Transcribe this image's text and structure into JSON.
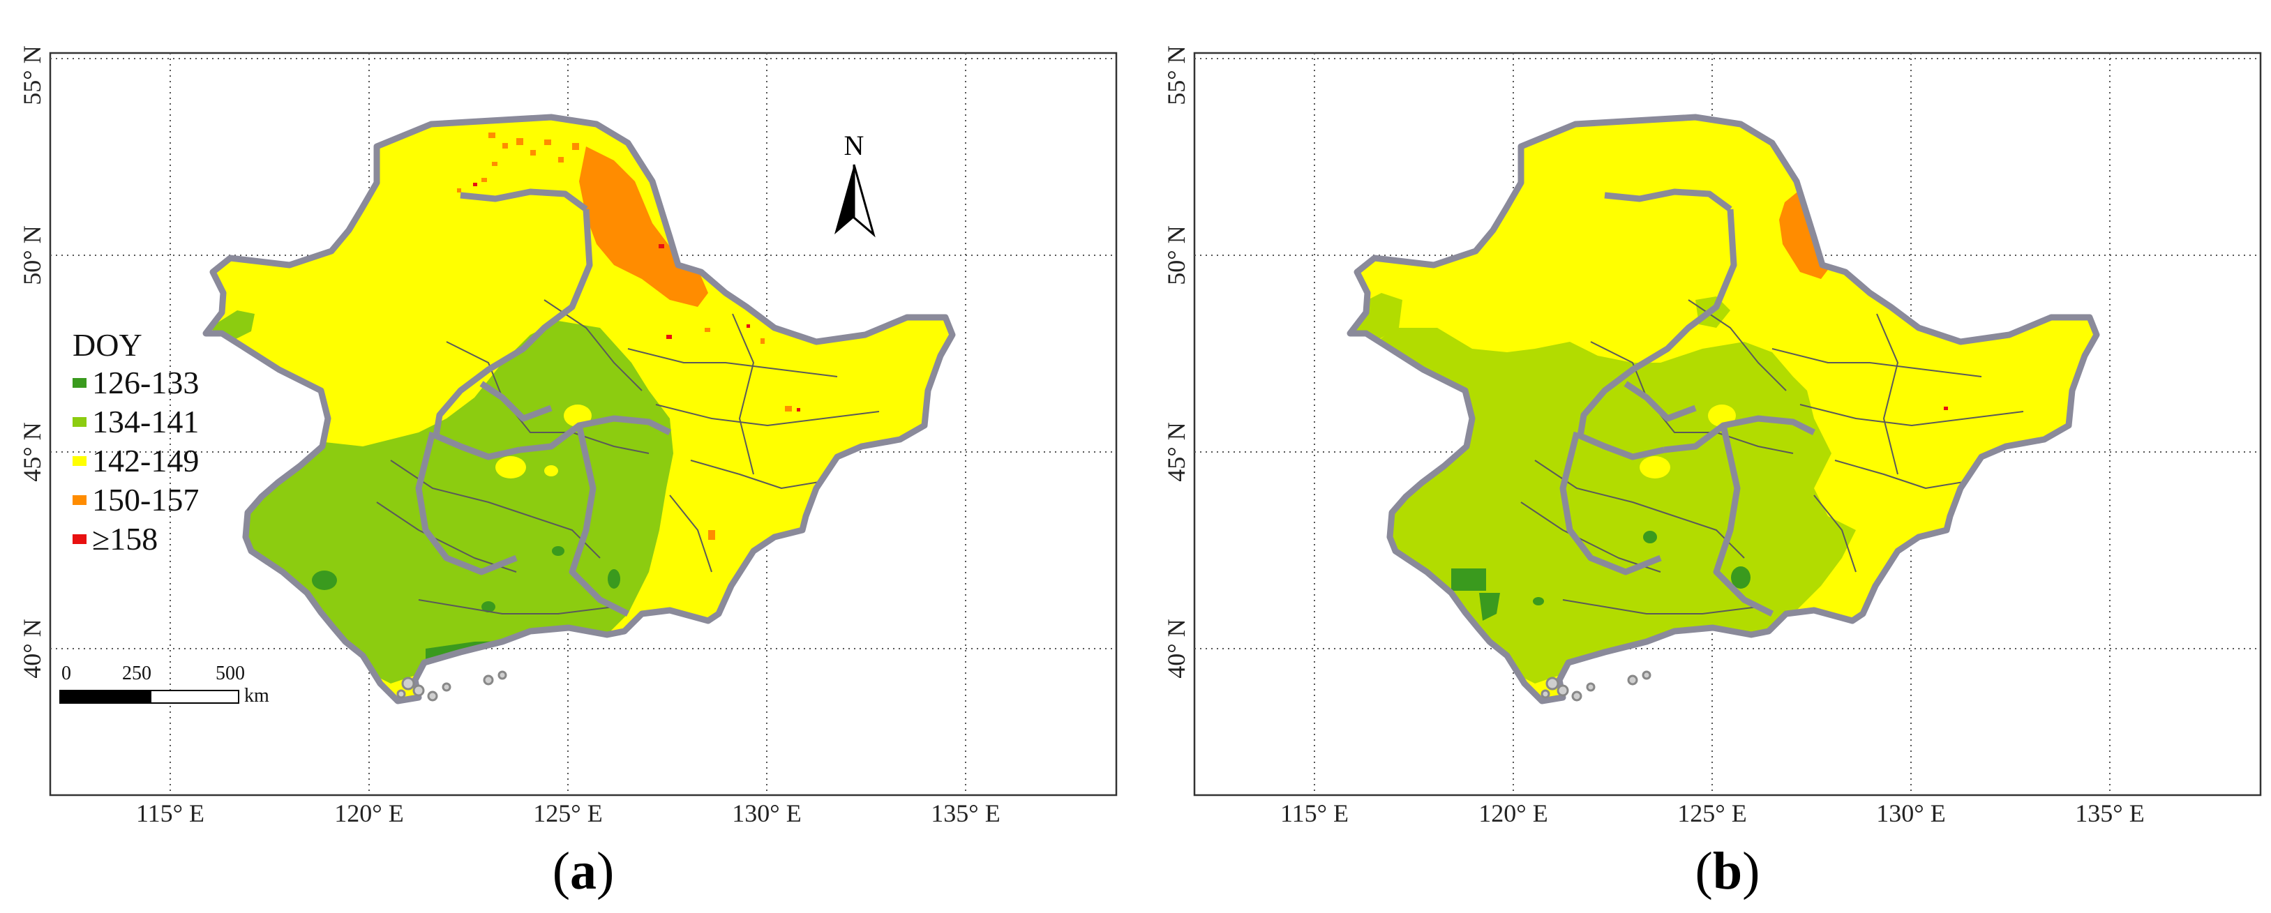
{
  "figure": {
    "panels": [
      {
        "caption_prefix": "(",
        "caption_letter": "a",
        "caption_suffix": ")",
        "lon_ticks": [
          "115° E",
          "120° E",
          "125° E",
          "130° E",
          "135° E"
        ],
        "lat_ticks": [
          "40° N",
          "45° N",
          "50° N",
          "55° N"
        ],
        "has_legend": true,
        "has_scale_bar": true,
        "has_north_arrow": true
      },
      {
        "caption_prefix": "(",
        "caption_letter": "b",
        "caption_suffix": ")",
        "lon_ticks": [
          "115° E",
          "120° E",
          "125° E",
          "130° E",
          "135° E"
        ],
        "lat_ticks": [
          "40° N",
          "45° N",
          "50° N",
          "55° N"
        ],
        "has_legend": false,
        "has_scale_bar": false,
        "has_north_arrow": false
      }
    ],
    "legend": {
      "title": "DOY",
      "items": [
        {
          "label": "126-133",
          "color": "#3a9a1e"
        },
        {
          "label": "134-141",
          "color": "#8ccc10"
        },
        {
          "label": "142-149",
          "color": "#ffff00"
        },
        {
          "label": "150-157",
          "color": "#ff8c00"
        },
        {
          "label": "≥158",
          "color": "#e81010"
        }
      ]
    },
    "scale_bar": {
      "labels": [
        "0",
        "250",
        "500"
      ],
      "unit": "km"
    },
    "north_arrow": {
      "label": "N"
    },
    "colors": {
      "class_126_133": "#3a9a1e",
      "class_134_141": "#8ccc10",
      "class_134_141_b": "#b2dc00",
      "class_142_149": "#ffff00",
      "class_150_157": "#ff8c00",
      "class_158": "#e81010",
      "boundary": "#8a8a9a"
    }
  }
}
